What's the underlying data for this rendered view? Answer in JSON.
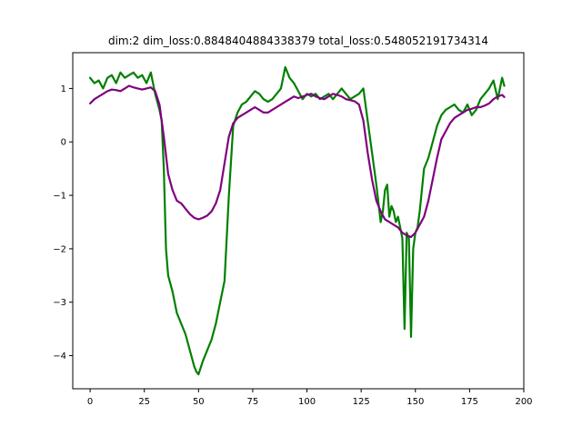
{
  "chart_data": {
    "type": "line",
    "title": "dim:2 dim_loss:0.8848404884338379 total_loss:0.548052191734314",
    "xlabel": "",
    "ylabel": "",
    "xlim": [
      -8,
      200
    ],
    "ylim": [
      -4.62,
      1.67
    ],
    "xticks": [
      0,
      25,
      50,
      75,
      100,
      125,
      150,
      175,
      200
    ],
    "yticks": [
      -4,
      -3,
      -2,
      -1,
      0,
      1
    ],
    "xtick_labels": [
      "0",
      "25",
      "50",
      "75",
      "100",
      "125",
      "150",
      "175",
      "200"
    ],
    "ytick_labels": [
      "−4",
      "−3",
      "−2",
      "−1",
      "0",
      "1"
    ],
    "grid": false,
    "legend": "none",
    "series": [
      {
        "color": "#008000",
        "x": [
          0,
          2,
          4,
          6,
          8,
          10,
          12,
          14,
          16,
          18,
          20,
          22,
          24,
          26,
          28,
          30,
          32,
          33,
          34,
          35,
          36,
          38,
          40,
          42,
          44,
          46,
          48,
          49,
          50,
          52,
          54,
          56,
          58,
          60,
          62,
          64,
          66,
          68,
          70,
          72,
          74,
          76,
          78,
          80,
          82,
          84,
          86,
          88,
          90,
          92,
          94,
          96,
          98,
          100,
          102,
          104,
          106,
          108,
          110,
          112,
          114,
          116,
          118,
          120,
          122,
          124,
          126,
          128,
          130,
          132,
          134,
          135,
          136,
          137,
          138,
          139,
          140,
          141,
          142,
          143,
          144,
          145,
          146,
          147,
          148,
          149,
          150,
          151,
          152,
          153,
          154,
          155,
          156,
          158,
          160,
          162,
          164,
          166,
          168,
          170,
          172,
          174,
          176,
          178,
          180,
          182,
          184,
          186,
          188,
          190,
          191
        ],
        "values": [
          1.2,
          1.1,
          1.15,
          1.0,
          1.2,
          1.25,
          1.1,
          1.3,
          1.2,
          1.25,
          1.3,
          1.2,
          1.25,
          1.1,
          1.3,
          0.9,
          0.6,
          0.4,
          -0.5,
          -2.0,
          -2.5,
          -2.8,
          -3.2,
          -3.4,
          -3.6,
          -3.9,
          -4.2,
          -4.3,
          -4.35,
          -4.1,
          -3.9,
          -3.7,
          -3.4,
          -3.0,
          -2.6,
          -1.0,
          0.3,
          0.55,
          0.7,
          0.75,
          0.85,
          0.95,
          0.9,
          0.8,
          0.75,
          0.8,
          0.9,
          1.0,
          1.4,
          1.2,
          1.1,
          0.95,
          0.8,
          0.9,
          0.85,
          0.9,
          0.8,
          0.85,
          0.9,
          0.8,
          0.9,
          1.0,
          0.9,
          0.8,
          0.85,
          0.9,
          1.0,
          0.4,
          -0.2,
          -0.8,
          -1.5,
          -1.3,
          -0.9,
          -0.8,
          -1.4,
          -1.2,
          -1.3,
          -1.5,
          -1.4,
          -1.6,
          -1.8,
          -3.5,
          -1.7,
          -1.8,
          -3.65,
          -2.0,
          -1.7,
          -1.6,
          -1.3,
          -0.9,
          -0.5,
          -0.4,
          -0.3,
          0.0,
          0.3,
          0.5,
          0.6,
          0.65,
          0.7,
          0.6,
          0.55,
          0.7,
          0.5,
          0.6,
          0.8,
          0.9,
          1.0,
          1.15,
          0.8,
          1.2,
          1.05
        ]
      },
      {
        "color": "#800080",
        "x": [
          0,
          2,
          4,
          6,
          8,
          10,
          12,
          14,
          16,
          18,
          20,
          22,
          24,
          26,
          28,
          30,
          32,
          34,
          36,
          38,
          40,
          42,
          44,
          46,
          48,
          50,
          52,
          54,
          56,
          58,
          60,
          62,
          64,
          66,
          68,
          70,
          72,
          74,
          76,
          78,
          80,
          82,
          84,
          86,
          88,
          90,
          92,
          94,
          96,
          98,
          100,
          102,
          104,
          106,
          108,
          110,
          112,
          114,
          116,
          118,
          120,
          122,
          124,
          126,
          128,
          130,
          132,
          134,
          136,
          138,
          140,
          142,
          144,
          146,
          148,
          150,
          152,
          154,
          156,
          158,
          160,
          162,
          164,
          166,
          168,
          170,
          172,
          174,
          176,
          178,
          180,
          182,
          184,
          186,
          188,
          190,
          191
        ],
        "values": [
          0.72,
          0.8,
          0.85,
          0.9,
          0.95,
          0.98,
          0.97,
          0.95,
          1.0,
          1.05,
          1.02,
          1.0,
          0.98,
          1.0,
          1.02,
          0.95,
          0.7,
          0.1,
          -0.6,
          -0.9,
          -1.1,
          -1.15,
          -1.25,
          -1.35,
          -1.42,
          -1.45,
          -1.42,
          -1.38,
          -1.3,
          -1.15,
          -0.9,
          -0.4,
          0.1,
          0.35,
          0.45,
          0.5,
          0.55,
          0.6,
          0.65,
          0.6,
          0.55,
          0.55,
          0.6,
          0.65,
          0.7,
          0.75,
          0.8,
          0.85,
          0.82,
          0.85,
          0.88,
          0.9,
          0.85,
          0.82,
          0.8,
          0.85,
          0.9,
          0.88,
          0.85,
          0.8,
          0.78,
          0.76,
          0.7,
          0.4,
          -0.2,
          -0.7,
          -1.1,
          -1.3,
          -1.45,
          -1.5,
          -1.55,
          -1.6,
          -1.7,
          -1.75,
          -1.78,
          -1.7,
          -1.55,
          -1.4,
          -1.1,
          -0.7,
          -0.3,
          0.05,
          0.2,
          0.35,
          0.45,
          0.5,
          0.55,
          0.6,
          0.62,
          0.65,
          0.65,
          0.68,
          0.72,
          0.8,
          0.85,
          0.88,
          0.84
        ]
      }
    ]
  }
}
